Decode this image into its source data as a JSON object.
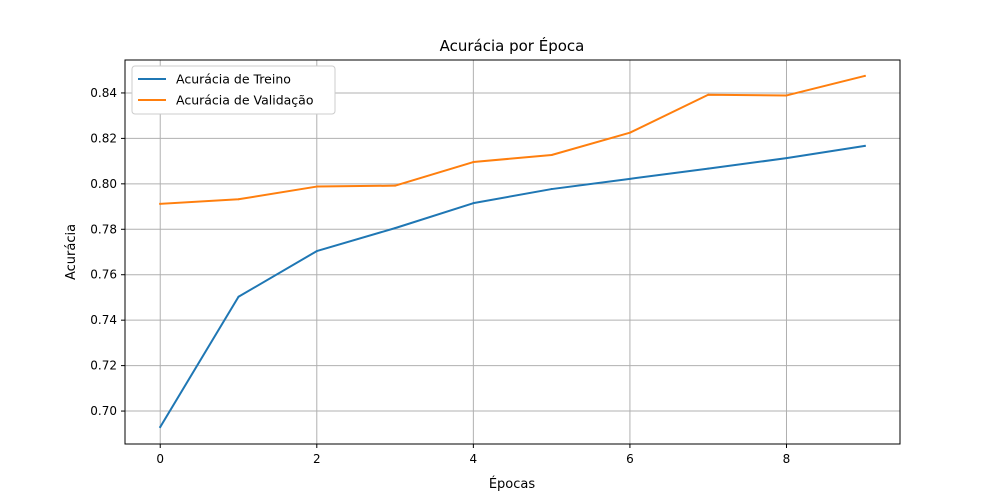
{
  "chart_data": {
    "type": "line",
    "title": "Acurácia por Época",
    "xlabel": "Épocas",
    "ylabel": "Acurácia",
    "x": [
      0,
      1,
      2,
      3,
      4,
      5,
      6,
      7,
      8,
      9
    ],
    "xlim": [
      -0.45,
      9.45
    ],
    "ylim": [
      0.6855,
      0.8545
    ],
    "xticks": [
      0,
      2,
      4,
      6,
      8
    ],
    "yticks": [
      0.7,
      0.72,
      0.74,
      0.76,
      0.78,
      0.8,
      0.82,
      0.84
    ],
    "xtick_labels": [
      "0",
      "2",
      "4",
      "6",
      "8"
    ],
    "ytick_labels": [
      "0.70",
      "0.72",
      "0.74",
      "0.76",
      "0.78",
      "0.80",
      "0.82",
      "0.84"
    ],
    "grid": true,
    "legend_position": "top-left",
    "series": [
      {
        "name": "Acurácia de Treino",
        "color": "#1f77b4",
        "values": [
          0.693,
          0.7503,
          0.7704,
          0.7805,
          0.7915,
          0.7977,
          0.8022,
          0.8067,
          0.8113,
          0.8167
        ]
      },
      {
        "name": "Acurácia de Validação",
        "color": "#ff7f0e",
        "values": [
          0.7912,
          0.7932,
          0.7988,
          0.7992,
          0.8096,
          0.8127,
          0.8225,
          0.8392,
          0.8389,
          0.8475
        ]
      }
    ]
  }
}
